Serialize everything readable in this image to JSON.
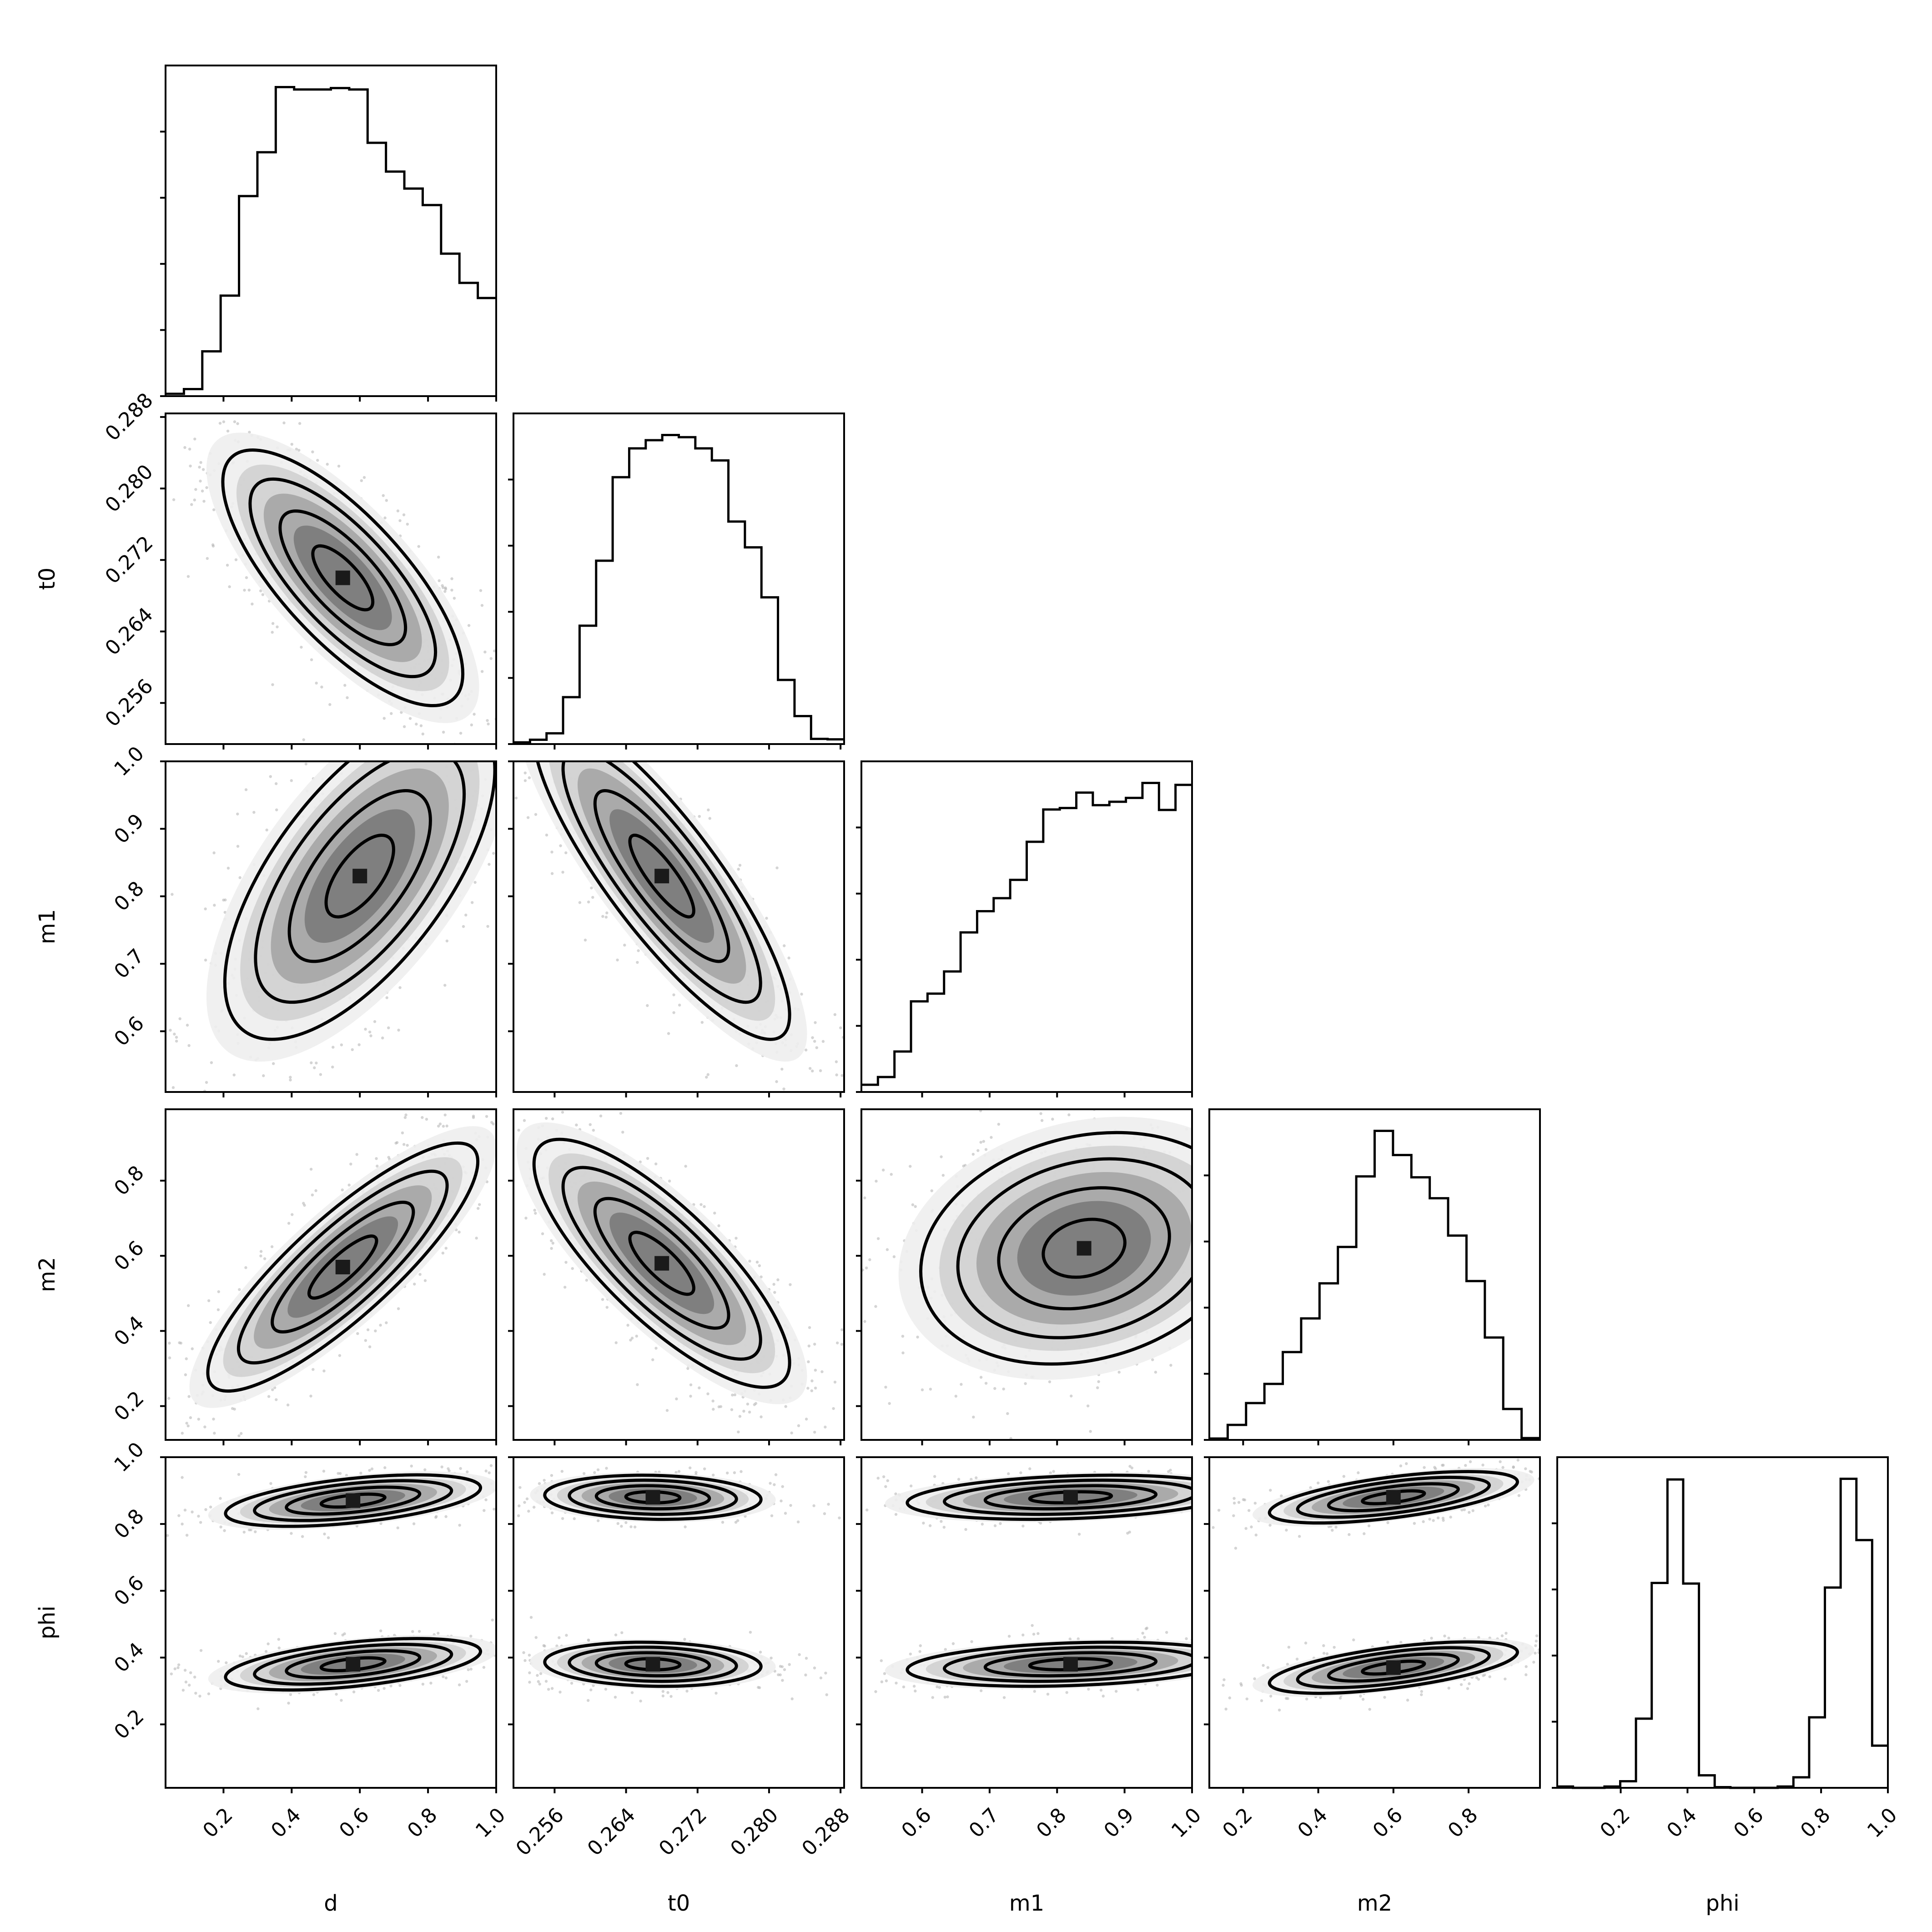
{
  "chart_data": {
    "type": "corner",
    "parameters": [
      "d",
      "t0",
      "m1",
      "m2",
      "phi"
    ],
    "labels": {
      "d": "d",
      "t0": "t0",
      "m1": "m1",
      "m2": "m2",
      "phi": "phi"
    },
    "ranges": {
      "d": [
        0.03,
        1.0
      ],
      "t0": [
        0.2514,
        0.2884
      ],
      "m1": [
        0.51,
        1.0
      ],
      "m2": [
        0.11,
        0.99
      ],
      "phi": [
        0.01,
        1.0
      ]
    },
    "ticks": {
      "d": [
        0.2,
        0.4,
        0.6,
        0.8,
        1.0
      ],
      "t0": [
        0.256,
        0.264,
        0.272,
        0.28,
        0.288
      ],
      "m1": [
        0.6,
        0.7,
        0.8,
        0.9,
        1.0
      ],
      "m2": [
        0.2,
        0.4,
        0.6,
        0.8
      ],
      "phi": [
        0.2,
        0.4,
        0.6,
        0.8,
        1.0
      ]
    },
    "tick_labels": {
      "d": [
        "0.2",
        "0.4",
        "0.6",
        "0.8",
        "1.0"
      ],
      "t0": [
        "0.256",
        "0.264",
        "0.272",
        "0.280",
        "0.288"
      ],
      "m1": [
        "0.6",
        "0.7",
        "0.8",
        "0.9",
        "1.0"
      ],
      "m2": [
        "0.2",
        "0.4",
        "0.6",
        "0.8"
      ],
      "phi": [
        "0.2",
        "0.4",
        "0.6",
        "0.8",
        "1.0"
      ]
    },
    "histograms": {
      "d": [
        0.5,
        1.5,
        9.5,
        21.3,
        42.4,
        51.7,
        65.5,
        65.0,
        65.0,
        65.3,
        65.0,
        53.7,
        47.6,
        44.0,
        40.5,
        30.2,
        24.0,
        20.8
      ],
      "t0": [
        0.4,
        1.0,
        2.5,
        10.9,
        27.5,
        42.6,
        62.0,
        68.7,
        70.6,
        71.8,
        71.3,
        68.7,
        65.9,
        51.7,
        45.7,
        34.1,
        14.9,
        6.5,
        1.2,
        1.1
      ],
      "m1": [
        1.5,
        3.1,
        8.4,
        18.8,
        20.4,
        25.0,
        33.1,
        37.5,
        40.2,
        44.0,
        51.9,
        58.6,
        58.9,
        62.1,
        59.5,
        60.2,
        61.0,
        64.1,
        58.5,
        63.7
      ],
      "m2": [
        0.3,
        3.3,
        8.1,
        12.3,
        19.3,
        26.7,
        34.4,
        42.4,
        57.9,
        67.9,
        62.6,
        57.7,
        53.1,
        44.9,
        34.9,
        22.5,
        6.8,
        0.4
      ],
      "phi": [
        0.2,
        0.0,
        0.0,
        0.2,
        1.0,
        10.5,
        31.1,
        46.8,
        31.0,
        1.9,
        0.1,
        0.0,
        0.0,
        0.0,
        0.2,
        1.6,
        10.7,
        30.4,
        46.9,
        37.6,
        6.4
      ]
    },
    "scatter_density": {
      "t0_vs_d": {
        "mean": [
          0.55,
          0.27
        ],
        "sd": [
          0.16,
          0.0065
        ],
        "rho": -0.75
      },
      "m1_vs_d": {
        "mean": [
          0.6,
          0.83
        ],
        "sd": [
          0.18,
          0.11
        ],
        "rho": 0.65
      },
      "m1_vs_t0": {
        "mean": [
          0.268,
          0.83
        ],
        "sd": [
          0.0065,
          0.11
        ],
        "rho": -0.85
      },
      "m2_vs_d": {
        "mean": [
          0.55,
          0.57
        ],
        "sd": [
          0.18,
          0.15
        ],
        "rho": 0.85
      },
      "m2_vs_t0": {
        "mean": [
          0.268,
          0.58
        ],
        "sd": [
          0.0065,
          0.15
        ],
        "rho": -0.8
      },
      "m2_vs_m1": {
        "mean": [
          0.84,
          0.62
        ],
        "sd": [
          0.11,
          0.14
        ],
        "rho": 0.2
      },
      "phi_vs_d": {
        "modes": [
          [
            0.58,
            0.87
          ],
          [
            0.58,
            0.38
          ]
        ],
        "sd": [
          0.17,
          0.035
        ],
        "rho": 0.5
      },
      "phi_vs_t0": {
        "modes": [
          [
            0.267,
            0.88
          ],
          [
            0.267,
            0.38
          ]
        ],
        "sd": [
          0.0055,
          0.03
        ],
        "rho": -0.1
      },
      "phi_vs_m1": {
        "modes": [
          [
            0.82,
            0.88
          ],
          [
            0.82,
            0.38
          ]
        ],
        "sd": [
          0.11,
          0.03
        ],
        "rho": 0.25
      },
      "phi_vs_m2": {
        "modes": [
          [
            0.6,
            0.88
          ],
          [
            0.6,
            0.37
          ]
        ],
        "sd": [
          0.15,
          0.035
        ],
        "rho": 0.6
      }
    },
    "grid": false,
    "legend": "none"
  }
}
